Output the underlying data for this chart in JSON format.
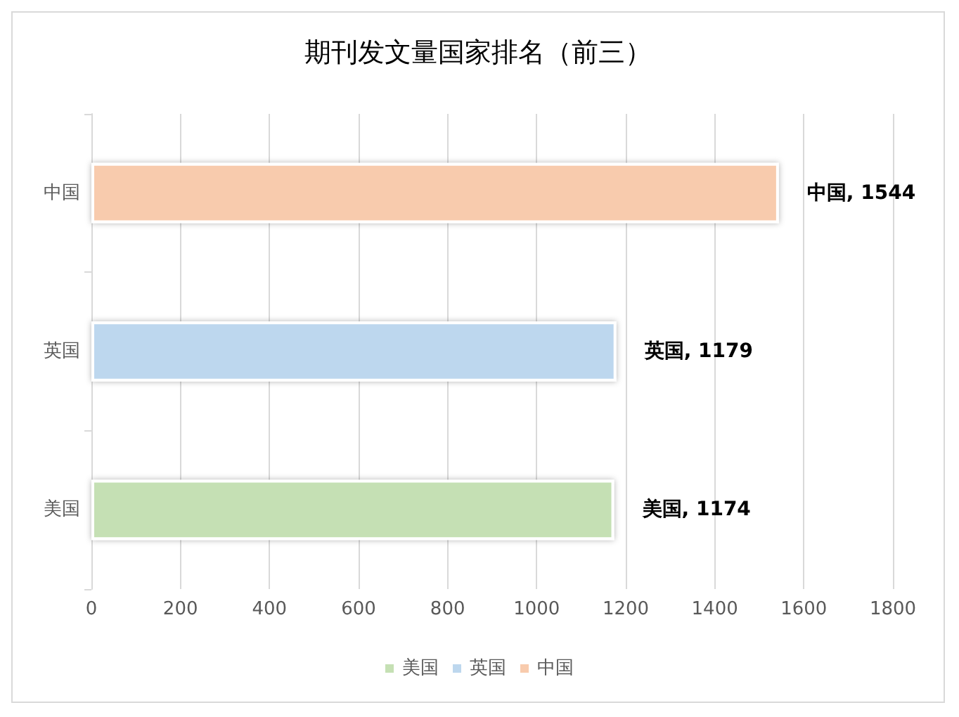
{
  "chart_data": {
    "type": "bar",
    "orientation": "horizontal",
    "title": "期刊发文量国家排名（前三）",
    "categories": [
      "中国",
      "英国",
      "美国"
    ],
    "series": [
      {
        "name": "美国",
        "color": "#c5e0b4",
        "values": [
          null,
          null,
          1174
        ],
        "value_labels": [
          null,
          null,
          "美国, 1174"
        ]
      },
      {
        "name": "英国",
        "color": "#bdd7ee",
        "values": [
          null,
          1179,
          null
        ],
        "value_labels": [
          null,
          "英国, 1179",
          null
        ]
      },
      {
        "name": "中国",
        "color": "#f8cbad",
        "values": [
          1544,
          null,
          null
        ],
        "value_labels": [
          "中国, 1544",
          null,
          null
        ]
      }
    ],
    "xlim": [
      0,
      1800
    ],
    "xticks": [
      0,
      200,
      400,
      600,
      800,
      1000,
      1200,
      1400,
      1600,
      1800
    ],
    "grid": "x",
    "legend": "bottom"
  }
}
